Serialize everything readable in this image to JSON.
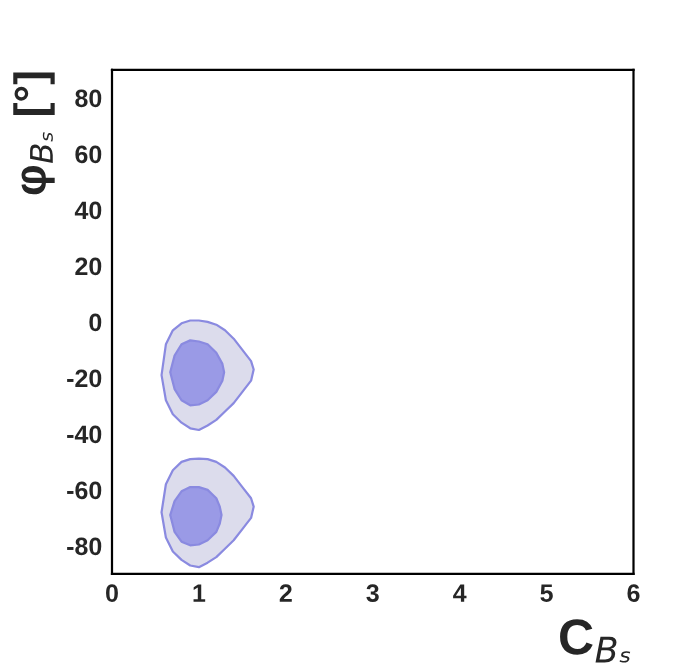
{
  "chart_data": {
    "type": "area",
    "xlabel": "C$_{Bₛ}$",
    "ylabel": "φ$_{Bₛ}$ [°]",
    "xlim": [
      0,
      6
    ],
    "xticks": [
      0,
      1,
      2,
      3,
      4,
      5,
      6
    ],
    "ylim": [
      -90,
      90
    ],
    "yticks": [
      -80,
      -60,
      -40,
      -20,
      0,
      20,
      40,
      60,
      80
    ],
    "grid": false,
    "legend": false,
    "marker": "none",
    "series": [
      {
        "color": "#dcdcec",
        "x": [
          0.57,
          0.62,
          0.7,
          0.8,
          0.9,
          1.0,
          1.1,
          1.2,
          1.3,
          1.4,
          1.5,
          1.6,
          1.63,
          1.6,
          1.5,
          1.4,
          1.3,
          1.2,
          1.1,
          1.0,
          0.9,
          0.8,
          0.7,
          0.62,
          0.57
        ],
        "values": [
          -19,
          -8,
          -3,
          -0.5,
          0.5,
          0.5,
          0,
          -1,
          -3,
          -6,
          -10,
          -14,
          -17,
          -21,
          -25,
          -29,
          -32,
          -35,
          -37,
          -38.6,
          -38,
          -36,
          -33,
          -28,
          -19
        ]
      },
      {
        "color": "#9a9ae6",
        "x": [
          0.67,
          0.72,
          0.8,
          0.9,
          1.0,
          1.1,
          1.2,
          1.27,
          1.29,
          1.27,
          1.2,
          1.1,
          1.0,
          0.9,
          0.8,
          0.72,
          0.67
        ],
        "values": [
          -18,
          -12,
          -8,
          -6.6,
          -7,
          -8,
          -11,
          -15,
          -18,
          -21,
          -25,
          -28,
          -29.5,
          -29.8,
          -28,
          -24,
          -18
        ]
      },
      {
        "color": "#dcdcec",
        "x": [
          0.57,
          0.62,
          0.7,
          0.8,
          0.9,
          1.0,
          1.1,
          1.2,
          1.3,
          1.4,
          1.5,
          1.6,
          1.63,
          1.6,
          1.5,
          1.4,
          1.3,
          1.2,
          1.1,
          1.0,
          0.9,
          0.8,
          0.7,
          0.62,
          0.57
        ],
        "values": [
          -68,
          -58,
          -53,
          -50,
          -49,
          -48.8,
          -49,
          -50,
          -52,
          -55,
          -59,
          -63,
          -66,
          -70,
          -74,
          -78,
          -81,
          -84,
          -86,
          -87.6,
          -87,
          -85,
          -82,
          -77,
          -68
        ]
      },
      {
        "color": "#9a9ae6",
        "x": [
          0.67,
          0.72,
          0.8,
          0.9,
          1.0,
          1.1,
          1.2,
          1.24,
          1.26,
          1.24,
          1.2,
          1.1,
          1.0,
          0.9,
          0.8,
          0.72,
          0.67
        ],
        "values": [
          -69,
          -64,
          -60.5,
          -59,
          -59,
          -60,
          -63,
          -66,
          -69,
          -72,
          -75,
          -78,
          -79.5,
          -79.8,
          -78.5,
          -75,
          -69
        ]
      }
    ]
  }
}
